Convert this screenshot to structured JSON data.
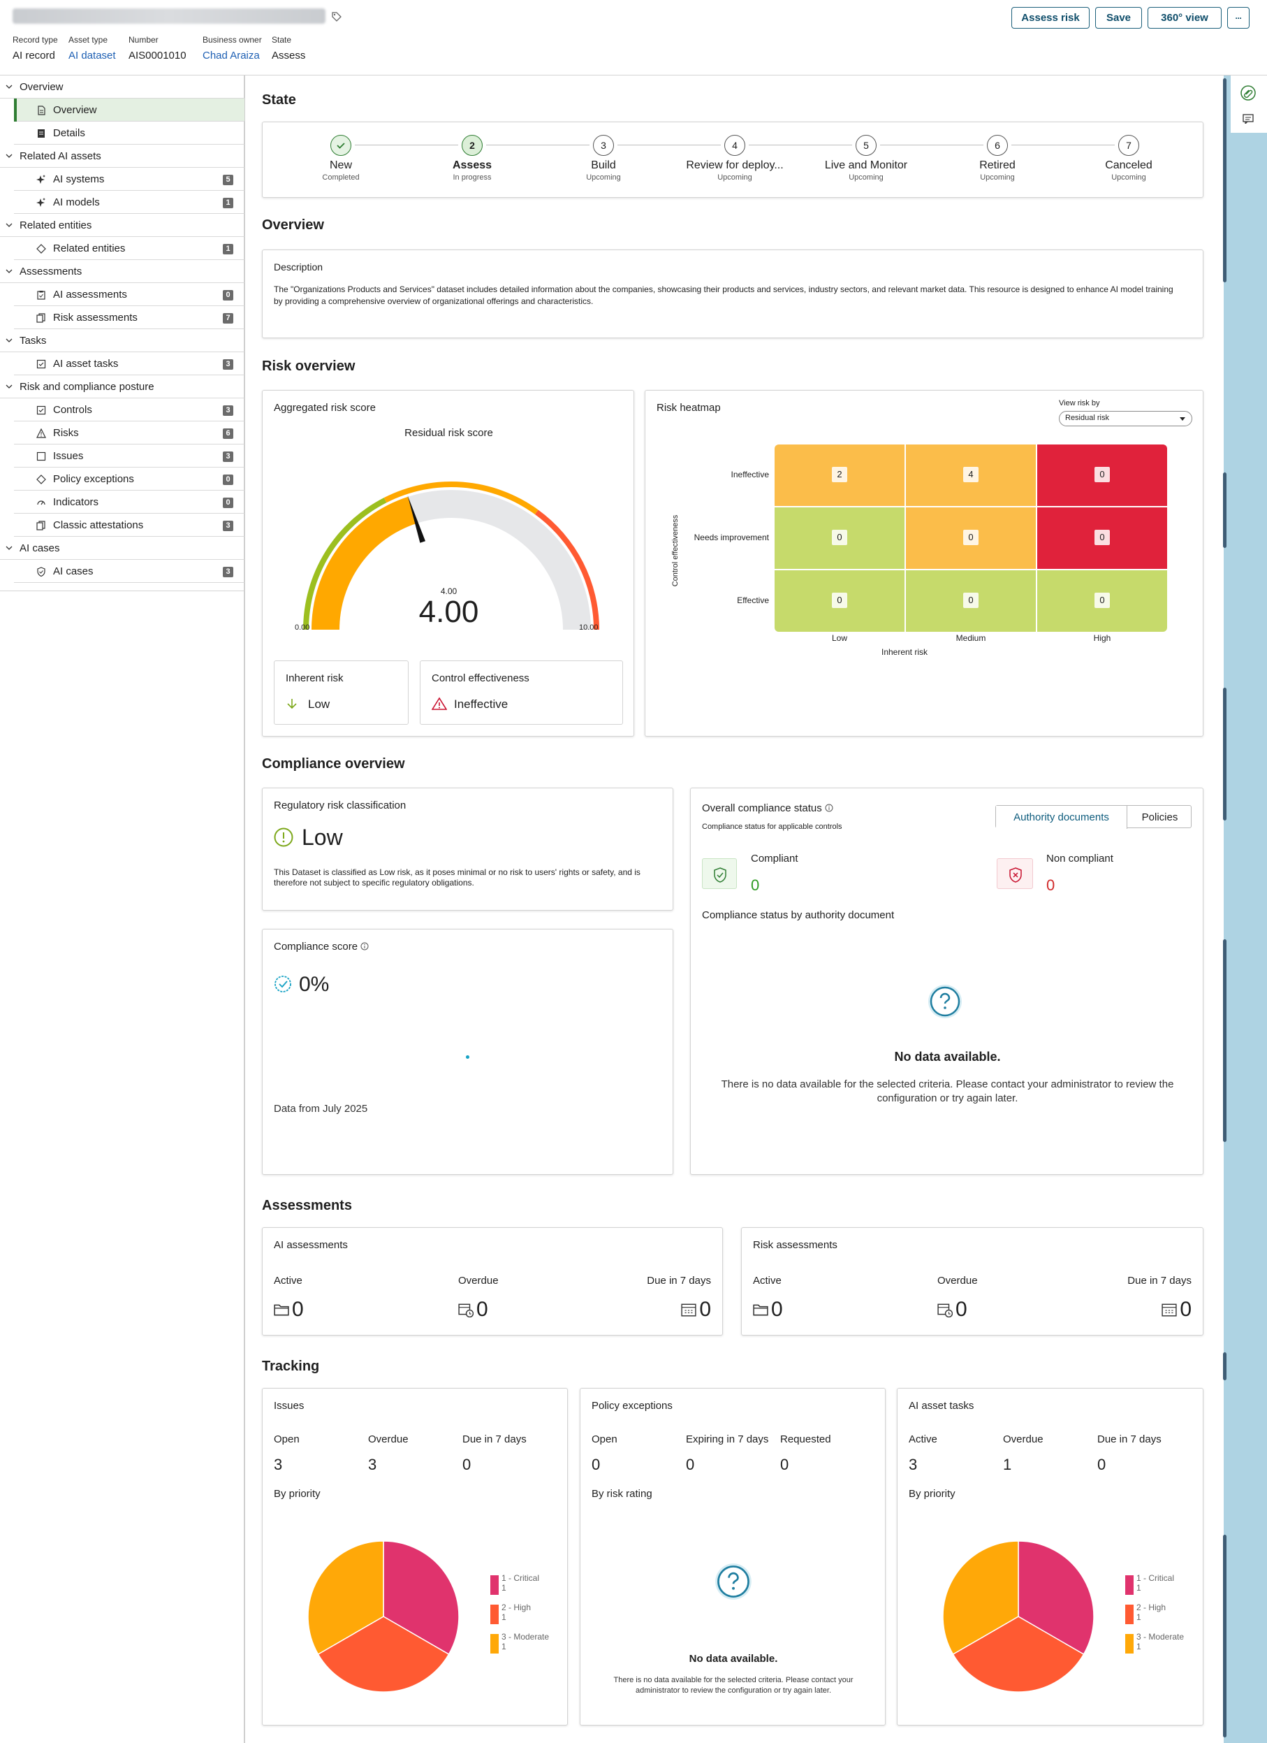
{
  "header": {
    "actions": {
      "assess_risk": "Assess risk",
      "save": "Save",
      "view360": "360° view",
      "more": "···"
    },
    "meta": [
      {
        "key": "Record type",
        "value": "AI record",
        "link": false
      },
      {
        "key": "Asset type",
        "value": "AI dataset",
        "link": true
      },
      {
        "key": "Number",
        "value": "AIS0001010",
        "link": false
      },
      {
        "key": "Business owner",
        "value": "Chad Araiza",
        "link": true
      },
      {
        "key": "State",
        "value": "Assess",
        "link": false
      }
    ]
  },
  "nav": {
    "sections": [
      {
        "label": "Overview",
        "items": [
          {
            "label": "Overview",
            "icon": "document-icon",
            "selected": true
          },
          {
            "label": "Details",
            "icon": "list-icon"
          }
        ]
      },
      {
        "label": "Related AI assets",
        "items": [
          {
            "label": "AI systems",
            "icon": "sparkle-icon",
            "count": "5"
          },
          {
            "label": "AI models",
            "icon": "sparkle-icon",
            "count": "1"
          }
        ]
      },
      {
        "label": "Related entities",
        "items": [
          {
            "label": "Related entities",
            "icon": "diamond-icon",
            "count": "1"
          }
        ]
      },
      {
        "label": "Assessments",
        "items": [
          {
            "label": "AI assessments",
            "icon": "clipboard-icon",
            "count": "0"
          },
          {
            "label": "Risk assessments",
            "icon": "copy-icon",
            "count": "7"
          }
        ]
      },
      {
        "label": "Tasks",
        "items": [
          {
            "label": "AI asset tasks",
            "icon": "check-square-icon",
            "count": "3"
          }
        ]
      },
      {
        "label": "Risk and compliance posture",
        "items": [
          {
            "label": "Controls",
            "icon": "check-square-icon",
            "count": "3"
          },
          {
            "label": "Risks",
            "icon": "warning-icon",
            "count": "6"
          },
          {
            "label": "Issues",
            "icon": "square-icon",
            "count": "3"
          },
          {
            "label": "Policy exceptions",
            "icon": "diamond-icon",
            "count": "0"
          },
          {
            "label": "Indicators",
            "icon": "gauge-icon",
            "count": "0"
          },
          {
            "label": "Classic attestations",
            "icon": "copy-icon",
            "count": "3"
          }
        ]
      },
      {
        "label": "AI cases",
        "items": [
          {
            "label": "AI cases",
            "icon": "shield-icon",
            "count": "3"
          }
        ]
      }
    ]
  },
  "state": {
    "title": "State",
    "steps": [
      {
        "num": "1",
        "label": "New",
        "status": "Completed"
      },
      {
        "num": "2",
        "label": "Assess",
        "status": "In progress"
      },
      {
        "num": "3",
        "label": "Build",
        "status": "Upcoming"
      },
      {
        "num": "4",
        "label": "Review for deploy...",
        "status": "Upcoming"
      },
      {
        "num": "5",
        "label": "Live and Monitor",
        "status": "Upcoming"
      },
      {
        "num": "6",
        "label": "Retired",
        "status": "Upcoming"
      },
      {
        "num": "7",
        "label": "Canceled",
        "status": "Upcoming"
      }
    ]
  },
  "overview": {
    "title": "Overview",
    "desc_label": "Description",
    "description": "The \"Organizations Products and Services\" dataset includes detailed information about the companies, showcasing their products and services, industry sectors, and relevant market data. This resource is designed to enhance AI model training by providing a comprehensive overview of organizational offerings and characteristics."
  },
  "risk": {
    "title": "Risk overview",
    "agg_title": "Aggregated risk score",
    "gauge": {
      "title": "Residual risk score",
      "value": 4.0,
      "small_value": "4.00",
      "big_value": "4.00",
      "min": "0.00",
      "max": "10.00"
    },
    "inherent": {
      "label": "Inherent risk",
      "value": "Low"
    },
    "control": {
      "label": "Control effectiveness",
      "value": "Ineffective"
    },
    "heatmap": {
      "title": "Risk heatmap",
      "view_by_label": "View risk by",
      "view_by_value": "Residual risk",
      "rows": [
        "Ineffective",
        "Needs improvement",
        "Effective"
      ],
      "cols": [
        "Low",
        "Medium",
        "High"
      ],
      "values": [
        [
          "2",
          "4",
          "0"
        ],
        [
          "0",
          "0",
          "0"
        ],
        [
          "0",
          "0",
          "0"
        ]
      ],
      "colors": [
        [
          "#fbbd4a",
          "#fbbd4a",
          "#e0223b"
        ],
        [
          "#c6da6b",
          "#fbbd4a",
          "#e0223b"
        ],
        [
          "#c6da6b",
          "#c6da6b",
          "#c6da6b"
        ]
      ],
      "y_axis": "Control effectiveness",
      "x_axis": "Inherent risk"
    }
  },
  "compliance": {
    "title": "Compliance overview",
    "reg": {
      "title": "Regulatory risk classification",
      "value": "Low",
      "text": "This Dataset is classified as Low risk, as it poses minimal or no risk to users' rights or safety, and is therefore not subject to specific regulatory obligations."
    },
    "score": {
      "title": "Compliance score",
      "value": "0%",
      "footnote": "Data from July 2025"
    },
    "overall": {
      "title": "Overall compliance status",
      "subtitle": "Compliance status for applicable controls",
      "tabs": [
        "Authority documents",
        "Policies"
      ],
      "compliant_label": "Compliant",
      "compliant_value": "0",
      "noncompliant_label": "Non compliant",
      "noncompliant_value": "0",
      "by_doc": "Compliance status by authority document",
      "nodata_title": "No data available.",
      "nodata_text": "There is no data available for the selected criteria. Please contact your administrator to review the configuration or try again later."
    }
  },
  "assessments": {
    "title": "Assessments",
    "cards": [
      {
        "title": "AI assessments",
        "cols": [
          {
            "label": "Active",
            "value": "0"
          },
          {
            "label": "Overdue",
            "value": "0"
          },
          {
            "label": "Due in 7 days",
            "value": "0"
          }
        ]
      },
      {
        "title": "Risk assessments",
        "cols": [
          {
            "label": "Active",
            "value": "0"
          },
          {
            "label": "Overdue",
            "value": "0"
          },
          {
            "label": "Due in 7 days",
            "value": "0"
          }
        ]
      }
    ]
  },
  "tracking": {
    "title": "Tracking",
    "issues": {
      "title": "Issues",
      "cols": [
        {
          "label": "Open",
          "value": "3"
        },
        {
          "label": "Overdue",
          "value": "3"
        },
        {
          "label": "Due in 7 days",
          "value": "0"
        }
      ],
      "sub": "By priority"
    },
    "policy": {
      "title": "Policy exceptions",
      "cols": [
        {
          "label": "Open",
          "value": "0"
        },
        {
          "label": "Expiring in 7 days",
          "value": "0"
        },
        {
          "label": "Requested",
          "value": "0"
        }
      ],
      "sub": "By risk rating",
      "nodata_title": "No data available.",
      "nodata_text": "There is no data available for the selected criteria. Please contact your administrator to review the configuration or try again later."
    },
    "tasks": {
      "title": "AI asset tasks",
      "cols": [
        {
          "label": "Active",
          "value": "3"
        },
        {
          "label": "Overdue",
          "value": "1"
        },
        {
          "label": "Due in 7 days",
          "value": "0"
        }
      ],
      "sub": "By priority"
    }
  },
  "chart_data": [
    {
      "type": "pie",
      "title": "By priority",
      "categories": [
        "1 - Critical",
        "2 - High",
        "3 - Moderate"
      ],
      "values": [
        1,
        1,
        1
      ],
      "colors": [
        "#e0336d",
        "#ff5a32",
        "#ffa808"
      ]
    },
    {
      "type": "pie",
      "title": "By priority",
      "categories": [
        "1 - Critical",
        "2 - High",
        "3 - Moderate"
      ],
      "values": [
        1,
        1,
        1
      ],
      "colors": [
        "#e0336d",
        "#ff5a32",
        "#ffa808"
      ]
    }
  ]
}
